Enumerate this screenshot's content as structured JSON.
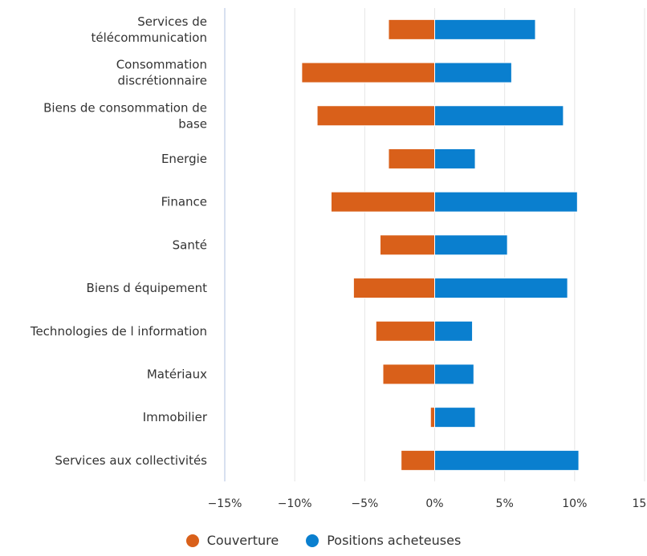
{
  "chart_data": {
    "type": "bar",
    "orientation": "horizontal",
    "stacking": "diverging",
    "categories": [
      "Services de télécommunication",
      "Consommation discrétionnaire",
      "Biens de consommation de base",
      "Energie",
      "Finance",
      "Santé",
      "Biens d équipement",
      "Technologies de l information",
      "Matériaux",
      "Immobilier",
      "Services aux collectivités"
    ],
    "category_lines": [
      [
        "Services de",
        "télécommunication"
      ],
      [
        "Consommation",
        "discrétionnaire"
      ],
      [
        "Biens de consommation de",
        "base"
      ],
      [
        "Energie"
      ],
      [
        "Finance"
      ],
      [
        "Santé"
      ],
      [
        "Biens d équipement"
      ],
      [
        "Technologies de l information"
      ],
      [
        "Matériaux"
      ],
      [
        "Immobilier"
      ],
      [
        "Services aux collectivités"
      ]
    ],
    "series": [
      {
        "name": "Couverture",
        "color": "#d9601a",
        "values": [
          -3.3,
          -9.5,
          -8.4,
          -3.3,
          -7.4,
          -3.9,
          -5.8,
          -4.2,
          -3.7,
          -0.3,
          -2.4
        ]
      },
      {
        "name": "Positions acheteuses",
        "color": "#0a7fcf",
        "values": [
          7.2,
          5.5,
          9.2,
          2.9,
          10.2,
          5.2,
          9.5,
          2.7,
          2.8,
          2.9,
          10.3
        ]
      }
    ],
    "xlim": [
      -15,
      15
    ],
    "xticks": [
      -15,
      -10,
      -5,
      0,
      5,
      10,
      15
    ],
    "xtick_labels": [
      "−15%",
      "−10%",
      "−5%",
      "0%",
      "5%",
      "10%",
      "15%"
    ],
    "grid": true,
    "legend_position": "bottom"
  },
  "legend": {
    "item1": "Couverture",
    "item2": "Positions acheteuses",
    "color1": "#d9601a",
    "color2": "#0a7fcf"
  }
}
